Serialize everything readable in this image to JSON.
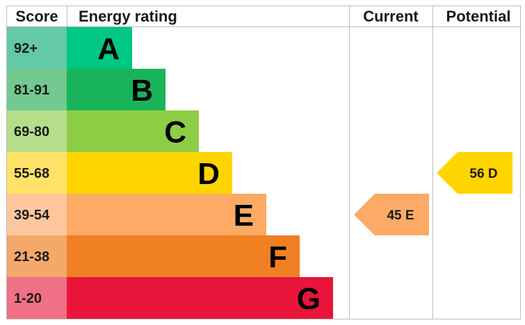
{
  "headers": {
    "score": "Score",
    "energy_rating": "Energy rating",
    "current": "Current",
    "potential": "Potential"
  },
  "chart_data": {
    "type": "bar",
    "bands": [
      {
        "letter": "A",
        "range": "92+",
        "color": "#00c781",
        "score_bg": "#63c9a6"
      },
      {
        "letter": "B",
        "range": "81-91",
        "color": "#19b459",
        "score_bg": "#73c98f"
      },
      {
        "letter": "C",
        "range": "69-80",
        "color": "#8dce46",
        "score_bg": "#b6dd8a"
      },
      {
        "letter": "D",
        "range": "55-68",
        "color": "#ffd500",
        "score_bg": "#ffe366"
      },
      {
        "letter": "E",
        "range": "39-54",
        "color": "#fcaa65",
        "score_bg": "#fdc79b"
      },
      {
        "letter": "F",
        "range": "21-38",
        "color": "#ef8023",
        "score_bg": "#f4a86a"
      },
      {
        "letter": "G",
        "range": "1-20",
        "color": "#e9153b",
        "score_bg": "#f07085"
      }
    ],
    "current": {
      "value": 45,
      "letter": "E",
      "label": "45  E",
      "color": "#fcaa65"
    },
    "potential": {
      "value": 56,
      "letter": "D",
      "label": "56  D",
      "color": "#ffd500"
    }
  }
}
